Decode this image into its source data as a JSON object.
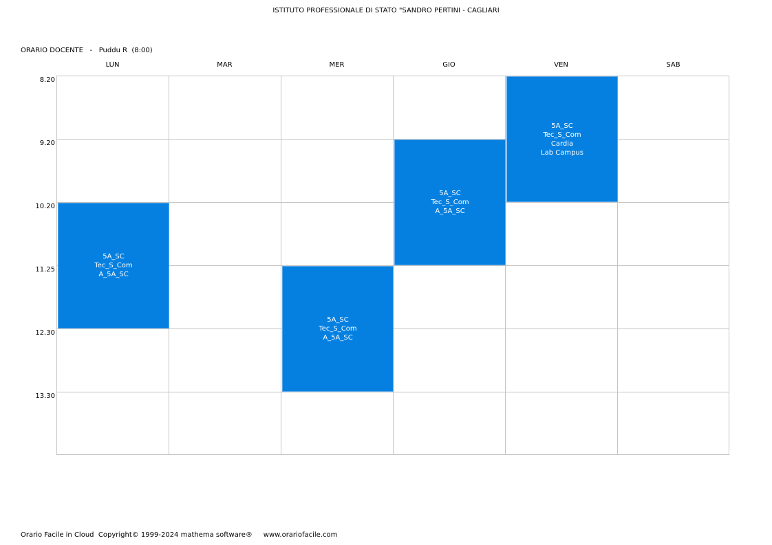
{
  "header": {
    "school": "ISTITUTO PROFESSIONALE DI STATO \"SANDRO PERTINI - CAGLIARI",
    "label": "ORARIO DOCENTE",
    "separator": "-",
    "teacher": "Puddu R",
    "hours": "(8:00)"
  },
  "days": [
    "LUN",
    "MAR",
    "MER",
    "GIO",
    "VEN",
    "SAB"
  ],
  "times": [
    "8.20",
    "9.20",
    "10.20",
    "11.25",
    "12.30",
    "13.30"
  ],
  "lessons": [
    {
      "day": "LUN",
      "start": "10.20",
      "slots": 2,
      "lines": [
        "5A_SC",
        "Tec_S_Com",
        "A_5A_SC"
      ]
    },
    {
      "day": "MER",
      "start": "11.25",
      "slots": 2,
      "lines": [
        "5A_SC",
        "Tec_S_Com",
        "A_5A_SC"
      ]
    },
    {
      "day": "GIO",
      "start": "9.20",
      "slots": 2,
      "lines": [
        "5A_SC",
        "Tec_S_Com",
        "A_5A_SC"
      ]
    },
    {
      "day": "VEN",
      "start": "8.20",
      "slots": 2,
      "lines": [
        "5A_SC",
        "Tec_S_Com",
        "Cardia",
        "Lab Campus"
      ]
    }
  ],
  "colors": {
    "lesson_bg": "#0580e0",
    "lesson_text": "#ffffff",
    "grid_line": "#c4c4c4"
  },
  "footer": {
    "app": "Orario Facile in Cloud",
    "copyright": "Copyright© 1999-2024 mathema software®",
    "website": "www.orariofacile.com"
  }
}
